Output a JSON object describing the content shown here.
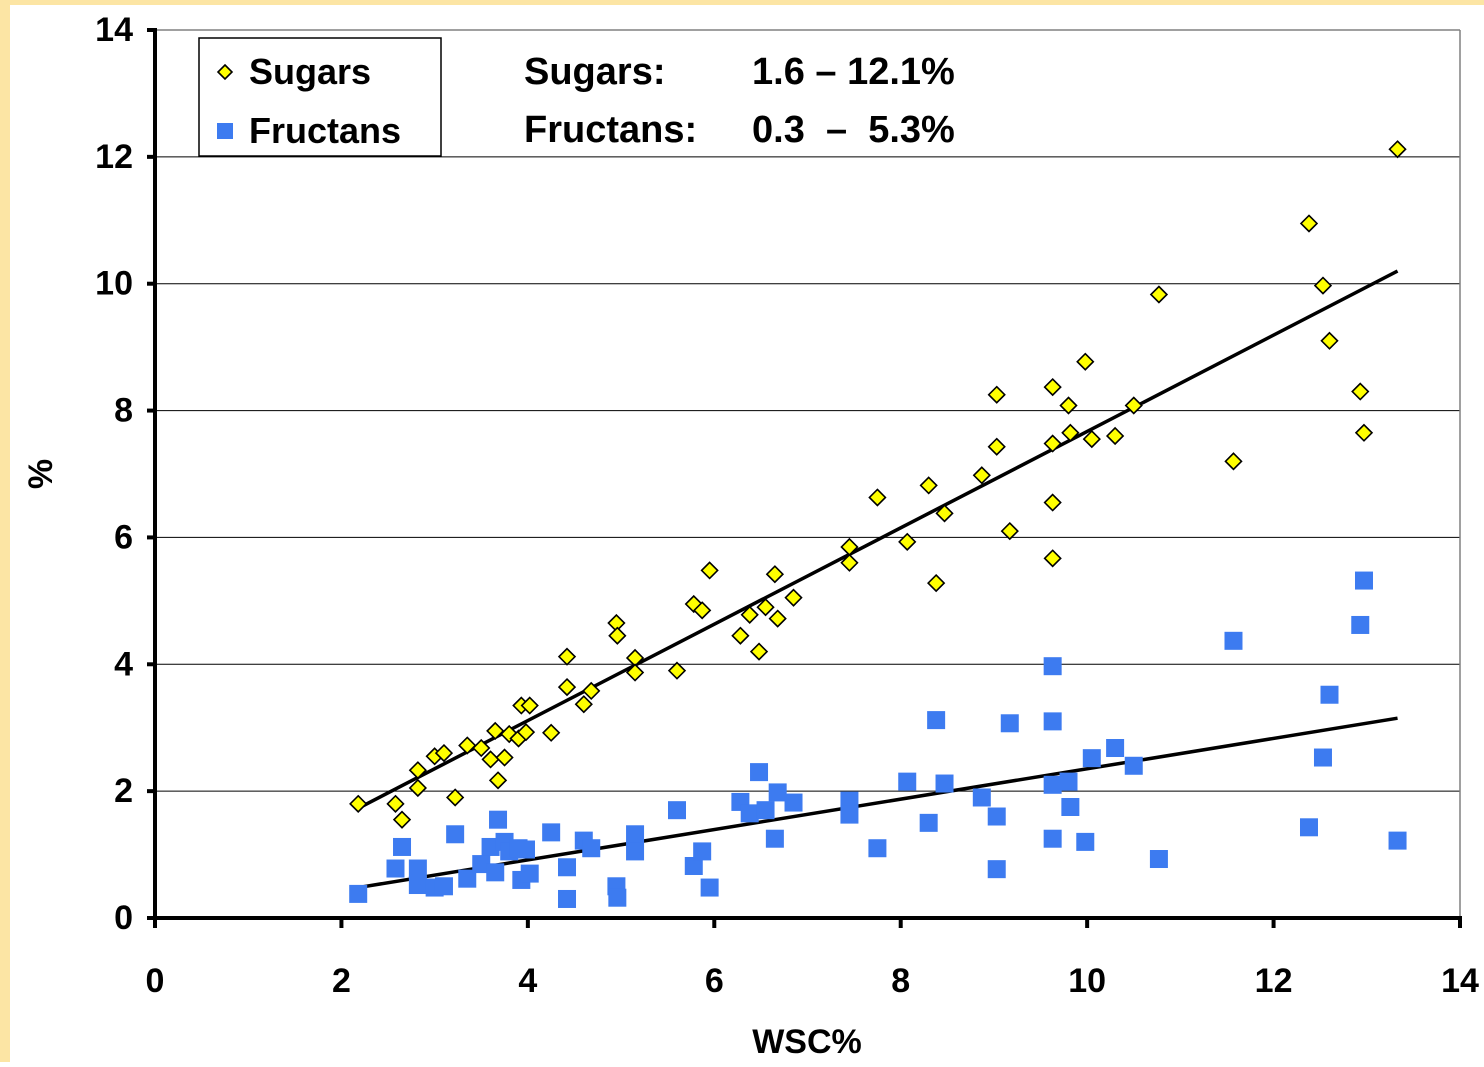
{
  "colors": {
    "frame": "#FCE5A4",
    "sugars_fill": "#FFFF00",
    "fructans_fill": "#3D7BF0",
    "axis": "#000000",
    "grid": "#000000",
    "trend": "#000000"
  },
  "chart_data": {
    "type": "scatter",
    "title": "",
    "xlabel": "WSC%",
    "ylabel": "%",
    "xlim": [
      0,
      14
    ],
    "ylim": [
      0,
      14
    ],
    "x_ticks": [
      "0",
      "2",
      "4",
      "6",
      "8",
      "10",
      "12",
      "14"
    ],
    "y_ticks": [
      "0",
      "2",
      "4",
      "6",
      "8",
      "10",
      "12",
      "14"
    ],
    "grid": "horizontal",
    "legend_position": "top-left",
    "annotations": {
      "sugars_range_label": "Sugars:",
      "sugars_range_value": "1.6 – 12.1%",
      "fructans_range_label": "Fructans:",
      "fructans_range_value": "0.3  –  5.3%"
    },
    "series": [
      {
        "name": "Sugars",
        "marker": "diamond",
        "x": [
          2.18,
          2.58,
          2.65,
          2.82,
          2.82,
          3.0,
          3.1,
          3.22,
          3.35,
          3.5,
          3.6,
          3.65,
          3.68,
          3.75,
          3.8,
          3.9,
          3.93,
          3.98,
          4.02,
          4.25,
          4.42,
          4.42,
          4.6,
          4.68,
          4.95,
          4.96,
          5.15,
          5.15,
          5.6,
          5.78,
          5.87,
          5.95,
          6.28,
          6.38,
          6.48,
          6.55,
          6.65,
          6.68,
          6.85,
          7.45,
          7.45,
          7.75,
          8.07,
          8.3,
          8.38,
          8.47,
          8.87,
          9.03,
          9.03,
          9.17,
          9.63,
          9.63,
          9.63,
          9.63,
          9.8,
          9.82,
          9.98,
          10.05,
          10.3,
          10.5,
          10.77,
          11.57,
          12.38,
          12.53,
          12.6,
          12.93,
          12.97,
          13.33
        ],
        "y": [
          1.8,
          1.8,
          1.55,
          2.05,
          2.33,
          2.55,
          2.6,
          1.9,
          2.72,
          2.68,
          2.5,
          2.95,
          2.17,
          2.53,
          2.9,
          2.83,
          3.35,
          2.93,
          3.35,
          2.92,
          4.12,
          3.64,
          3.37,
          3.58,
          4.65,
          4.45,
          4.1,
          3.87,
          3.9,
          4.95,
          4.85,
          5.48,
          4.45,
          4.78,
          4.2,
          4.9,
          5.42,
          4.72,
          5.05,
          5.85,
          5.6,
          6.63,
          5.93,
          6.82,
          5.28,
          6.38,
          6.98,
          8.25,
          7.43,
          6.1,
          8.37,
          7.48,
          6.55,
          5.67,
          8.08,
          7.65,
          8.77,
          7.55,
          7.6,
          8.08,
          9.83,
          7.2,
          10.95,
          9.97,
          9.1,
          8.3,
          7.65,
          12.12
        ],
        "trendline": {
          "from": [
            2.18,
            1.73
          ],
          "to": [
            13.33,
            10.2
          ]
        }
      },
      {
        "name": "Fructans",
        "marker": "square",
        "x": [
          2.18,
          2.58,
          2.65,
          2.82,
          2.82,
          3.0,
          3.1,
          3.22,
          3.35,
          3.5,
          3.6,
          3.65,
          3.68,
          3.75,
          3.8,
          3.9,
          3.93,
          3.98,
          4.02,
          4.25,
          4.42,
          4.42,
          4.6,
          4.68,
          4.95,
          4.96,
          5.15,
          5.15,
          5.6,
          5.78,
          5.87,
          5.95,
          6.28,
          6.38,
          6.48,
          6.55,
          6.65,
          6.68,
          6.85,
          7.45,
          7.45,
          7.75,
          8.07,
          8.3,
          8.38,
          8.47,
          8.87,
          9.03,
          9.03,
          9.17,
          9.63,
          9.63,
          9.63,
          9.63,
          9.8,
          9.82,
          9.98,
          10.05,
          10.3,
          10.5,
          10.77,
          11.57,
          12.38,
          12.53,
          12.6,
          12.93,
          12.97,
          13.33
        ],
        "y": [
          0.38,
          0.78,
          1.12,
          0.78,
          0.52,
          0.48,
          0.5,
          1.32,
          0.62,
          0.85,
          1.12,
          0.72,
          1.55,
          1.2,
          1.05,
          1.1,
          0.6,
          1.08,
          0.7,
          1.35,
          0.3,
          0.8,
          1.22,
          1.1,
          0.5,
          0.32,
          1.32,
          1.05,
          1.7,
          0.82,
          1.05,
          0.48,
          1.83,
          1.65,
          2.3,
          1.7,
          1.25,
          1.98,
          1.82,
          1.85,
          1.63,
          1.1,
          2.15,
          1.5,
          3.12,
          2.12,
          1.9,
          1.6,
          0.77,
          3.07,
          3.97,
          3.1,
          2.1,
          1.25,
          2.15,
          1.75,
          1.2,
          2.52,
          2.68,
          2.4,
          0.93,
          4.37,
          1.43,
          2.53,
          3.52,
          4.62,
          5.32,
          1.22
        ],
        "trendline": {
          "from": [
            2.18,
            0.48
          ],
          "to": [
            13.33,
            3.15
          ]
        }
      }
    ]
  }
}
